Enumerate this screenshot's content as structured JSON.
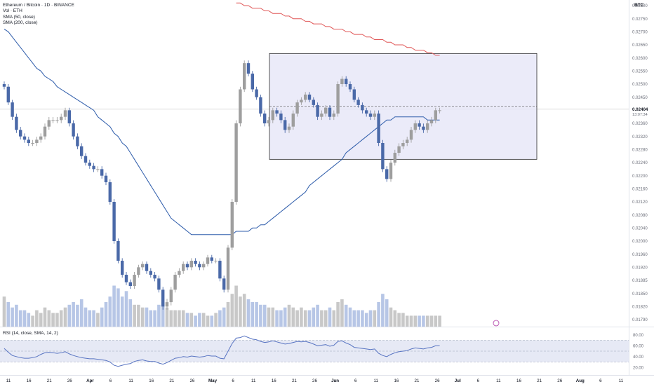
{
  "header": {
    "symbol_line": "Ethereum / Bitcoin · 1D · BINANCE",
    "volume_label": "Vol · ETH",
    "sma50_label": "SMA (50, close)",
    "sma200_label": "SMA (200, close)",
    "currency": "BTC"
  },
  "rsi": {
    "label": "RSI (14, close, SMA, 14, 2)",
    "ticks": [
      "80.00",
      "60.00",
      "40.00",
      "20.00"
    ]
  },
  "last_price": {
    "value": "0.02404",
    "countdown": "13:07:34"
  },
  "colors": {
    "up": "#9e9e9e",
    "down": "#4a69a8",
    "sma50": "#2f5dab",
    "sma200": "#e05757",
    "range": "#e4e4f7",
    "rsi": "#5874c2",
    "rsi_band": "#e6e9f5",
    "vol_up": "#c8c8c8",
    "vol_down": "#b7c6e6"
  },
  "chart_data": {
    "type": "candlestick",
    "price_axis_ticks": [
      "0.02800",
      "0.02750",
      "0.02700",
      "0.02650",
      "0.02600",
      "0.02550",
      "0.02500",
      "0.02450",
      "0.02400",
      "0.02360",
      "0.02320",
      "0.02280",
      "0.02240",
      "0.02200",
      "0.02160",
      "0.02120",
      "0.02080",
      "0.02040",
      "0.02000",
      "0.01960",
      "0.01920",
      "0.01885",
      "0.01850",
      "0.01820",
      "0.01790"
    ],
    "x_axis_ticks": [
      "11",
      "16",
      "21",
      "26",
      "Apr",
      "6",
      "11",
      "16",
      "21",
      "26",
      "May",
      "6",
      "11",
      "16",
      "21",
      "26",
      "Jun",
      "6",
      "11",
      "16",
      "21",
      "26",
      "Jul",
      "6",
      "11",
      "16",
      "21",
      "26",
      "Aug",
      "6",
      "11"
    ],
    "closes": [
      0.0249,
      0.0243,
      0.0238,
      0.0234,
      0.0232,
      0.0231,
      0.023,
      0.023,
      0.0231,
      0.0232,
      0.0235,
      0.0237,
      0.0237,
      0.0237,
      0.0238,
      0.024,
      0.0236,
      0.0232,
      0.0229,
      0.0226,
      0.0224,
      0.0223,
      0.0222,
      0.0222,
      0.022,
      0.0218,
      0.0212,
      0.02,
      0.0194,
      0.019,
      0.0188,
      0.0187,
      0.019,
      0.0192,
      0.0193,
      0.0191,
      0.019,
      0.0189,
      0.0186,
      0.0182,
      0.0183,
      0.0186,
      0.019,
      0.0191,
      0.0193,
      0.0192,
      0.0194,
      0.0193,
      0.0192,
      0.0193,
      0.0195,
      0.0194,
      0.0194,
      0.0189,
      0.0186,
      0.0198,
      0.0212,
      0.0236,
      0.0248,
      0.0258,
      0.0254,
      0.0248,
      0.0245,
      0.0239,
      0.0236,
      0.0237,
      0.024,
      0.0239,
      0.0237,
      0.0234,
      0.0235,
      0.0239,
      0.0243,
      0.0244,
      0.0246,
      0.0244,
      0.0242,
      0.0238,
      0.0239,
      0.0241,
      0.0238,
      0.0239,
      0.025,
      0.0252,
      0.025,
      0.0248,
      0.0244,
      0.0242,
      0.024,
      0.0239,
      0.0238,
      0.0239,
      0.023,
      0.0222,
      0.0219,
      0.0224,
      0.0227,
      0.0229,
      0.023,
      0.0231,
      0.0234,
      0.0236,
      0.0235,
      0.0234,
      0.0236,
      0.0237,
      0.024,
      0.024
    ],
    "sma50": [
      0.0271,
      0.027,
      0.0268,
      0.0266,
      0.0264,
      0.0262,
      0.026,
      0.0258,
      0.0256,
      0.0255,
      0.0253,
      0.0252,
      0.0251,
      0.0249,
      0.0248,
      0.0247,
      0.0246,
      0.0245,
      0.0244,
      0.0243,
      0.0242,
      0.0241,
      0.024,
      0.0238,
      0.0237,
      0.0236,
      0.0235,
      0.0233,
      0.0232,
      0.023,
      0.0229,
      0.0227,
      0.0225,
      0.0223,
      0.0221,
      0.0219,
      0.0217,
      0.0215,
      0.0213,
      0.0211,
      0.0209,
      0.0207,
      0.0206,
      0.0205,
      0.0204,
      0.0203,
      0.0202,
      0.0202,
      0.0202,
      0.0202,
      0.0202,
      0.0202,
      0.0202,
      0.0202,
      0.0202,
      0.0202,
      0.0202,
      0.0203,
      0.0203,
      0.0203,
      0.0203,
      0.0204,
      0.0204,
      0.0205,
      0.0205,
      0.0206,
      0.0207,
      0.0208,
      0.0209,
      0.021,
      0.0211,
      0.0212,
      0.0213,
      0.0214,
      0.0215,
      0.0217,
      0.0218,
      0.0219,
      0.022,
      0.0221,
      0.0222,
      0.0223,
      0.0224,
      0.0225,
      0.0227,
      0.0228,
      0.0229,
      0.023,
      0.0231,
      0.0232,
      0.0233,
      0.0234,
      0.0235,
      0.0236,
      0.0237,
      0.0237,
      0.0238,
      0.0238,
      0.0238,
      0.0238,
      0.0238,
      0.0238,
      0.0238,
      0.0238,
      0.0237,
      0.0237,
      0.0237,
      0.0237
    ],
    "sma200": [
      0.0281,
      0.0281,
      0.028,
      0.028,
      0.0279,
      0.0279,
      0.0279,
      0.0278,
      0.0278,
      0.0277,
      0.0277,
      0.0277,
      0.0276,
      0.0276,
      0.0275,
      0.0275,
      0.0275,
      0.0274,
      0.0274,
      0.0273,
      0.0273,
      0.0273,
      0.0272,
      0.0272,
      0.0271,
      0.0271,
      0.0271,
      0.027,
      0.027,
      0.0269,
      0.0269,
      0.0269,
      0.0268,
      0.0268,
      0.0267,
      0.0267,
      0.0267,
      0.0266,
      0.0266,
      0.0265,
      0.0265,
      0.0265,
      0.0264,
      0.0264,
      0.0263,
      0.0263,
      0.0263,
      0.0262,
      0.0262,
      0.0261,
      0.0261
    ],
    "volume": [
      0.55,
      0.45,
      0.35,
      0.4,
      0.3,
      0.3,
      0.25,
      0.2,
      0.3,
      0.25,
      0.35,
      0.3,
      0.25,
      0.25,
      0.3,
      0.35,
      0.4,
      0.45,
      0.4,
      0.5,
      0.35,
      0.3,
      0.3,
      0.25,
      0.35,
      0.45,
      0.55,
      0.75,
      0.7,
      0.55,
      0.65,
      0.5,
      0.4,
      0.4,
      0.35,
      0.35,
      0.3,
      0.3,
      0.4,
      0.45,
      0.35,
      0.3,
      0.3,
      0.3,
      0.3,
      0.25,
      0.25,
      0.2,
      0.25,
      0.25,
      0.2,
      0.2,
      0.25,
      0.3,
      0.35,
      0.45,
      0.6,
      0.75,
      0.55,
      0.6,
      0.5,
      0.45,
      0.45,
      0.4,
      0.4,
      0.35,
      0.35,
      0.3,
      0.3,
      0.35,
      0.4,
      0.35,
      0.3,
      0.35,
      0.3,
      0.3,
      0.35,
      0.4,
      0.3,
      0.3,
      0.35,
      0.3,
      0.45,
      0.5,
      0.4,
      0.35,
      0.3,
      0.3,
      0.3,
      0.25,
      0.3,
      0.3,
      0.45,
      0.6,
      0.5,
      0.35,
      0.3,
      0.25,
      0.25,
      0.2,
      0.2,
      0.2,
      0.2,
      0.2,
      0.2,
      0.2,
      0.2,
      0.2
    ],
    "rsi_values": [
      55,
      48,
      42,
      40,
      38,
      37,
      37,
      38,
      40,
      44,
      47,
      48,
      47,
      46,
      47,
      49,
      45,
      42,
      40,
      38,
      37,
      36,
      36,
      35,
      34,
      33,
      30,
      24,
      22,
      24,
      26,
      27,
      31,
      33,
      34,
      32,
      31,
      31,
      28,
      26,
      29,
      33,
      37,
      38,
      40,
      39,
      41,
      40,
      39,
      40,
      42,
      41,
      41,
      37,
      36,
      50,
      64,
      74,
      75,
      78,
      75,
      72,
      71,
      68,
      66,
      67,
      69,
      67,
      65,
      63,
      64,
      66,
      68,
      67,
      68,
      66,
      63,
      60,
      61,
      62,
      59,
      61,
      68,
      69,
      65,
      62,
      57,
      56,
      55,
      54,
      53,
      54,
      46,
      42,
      40,
      44,
      47,
      49,
      50,
      51,
      54,
      56,
      55,
      54,
      56,
      57,
      60,
      60
    ],
    "range_box": {
      "top": 0.02617,
      "bottom": 0.0225
    }
  }
}
